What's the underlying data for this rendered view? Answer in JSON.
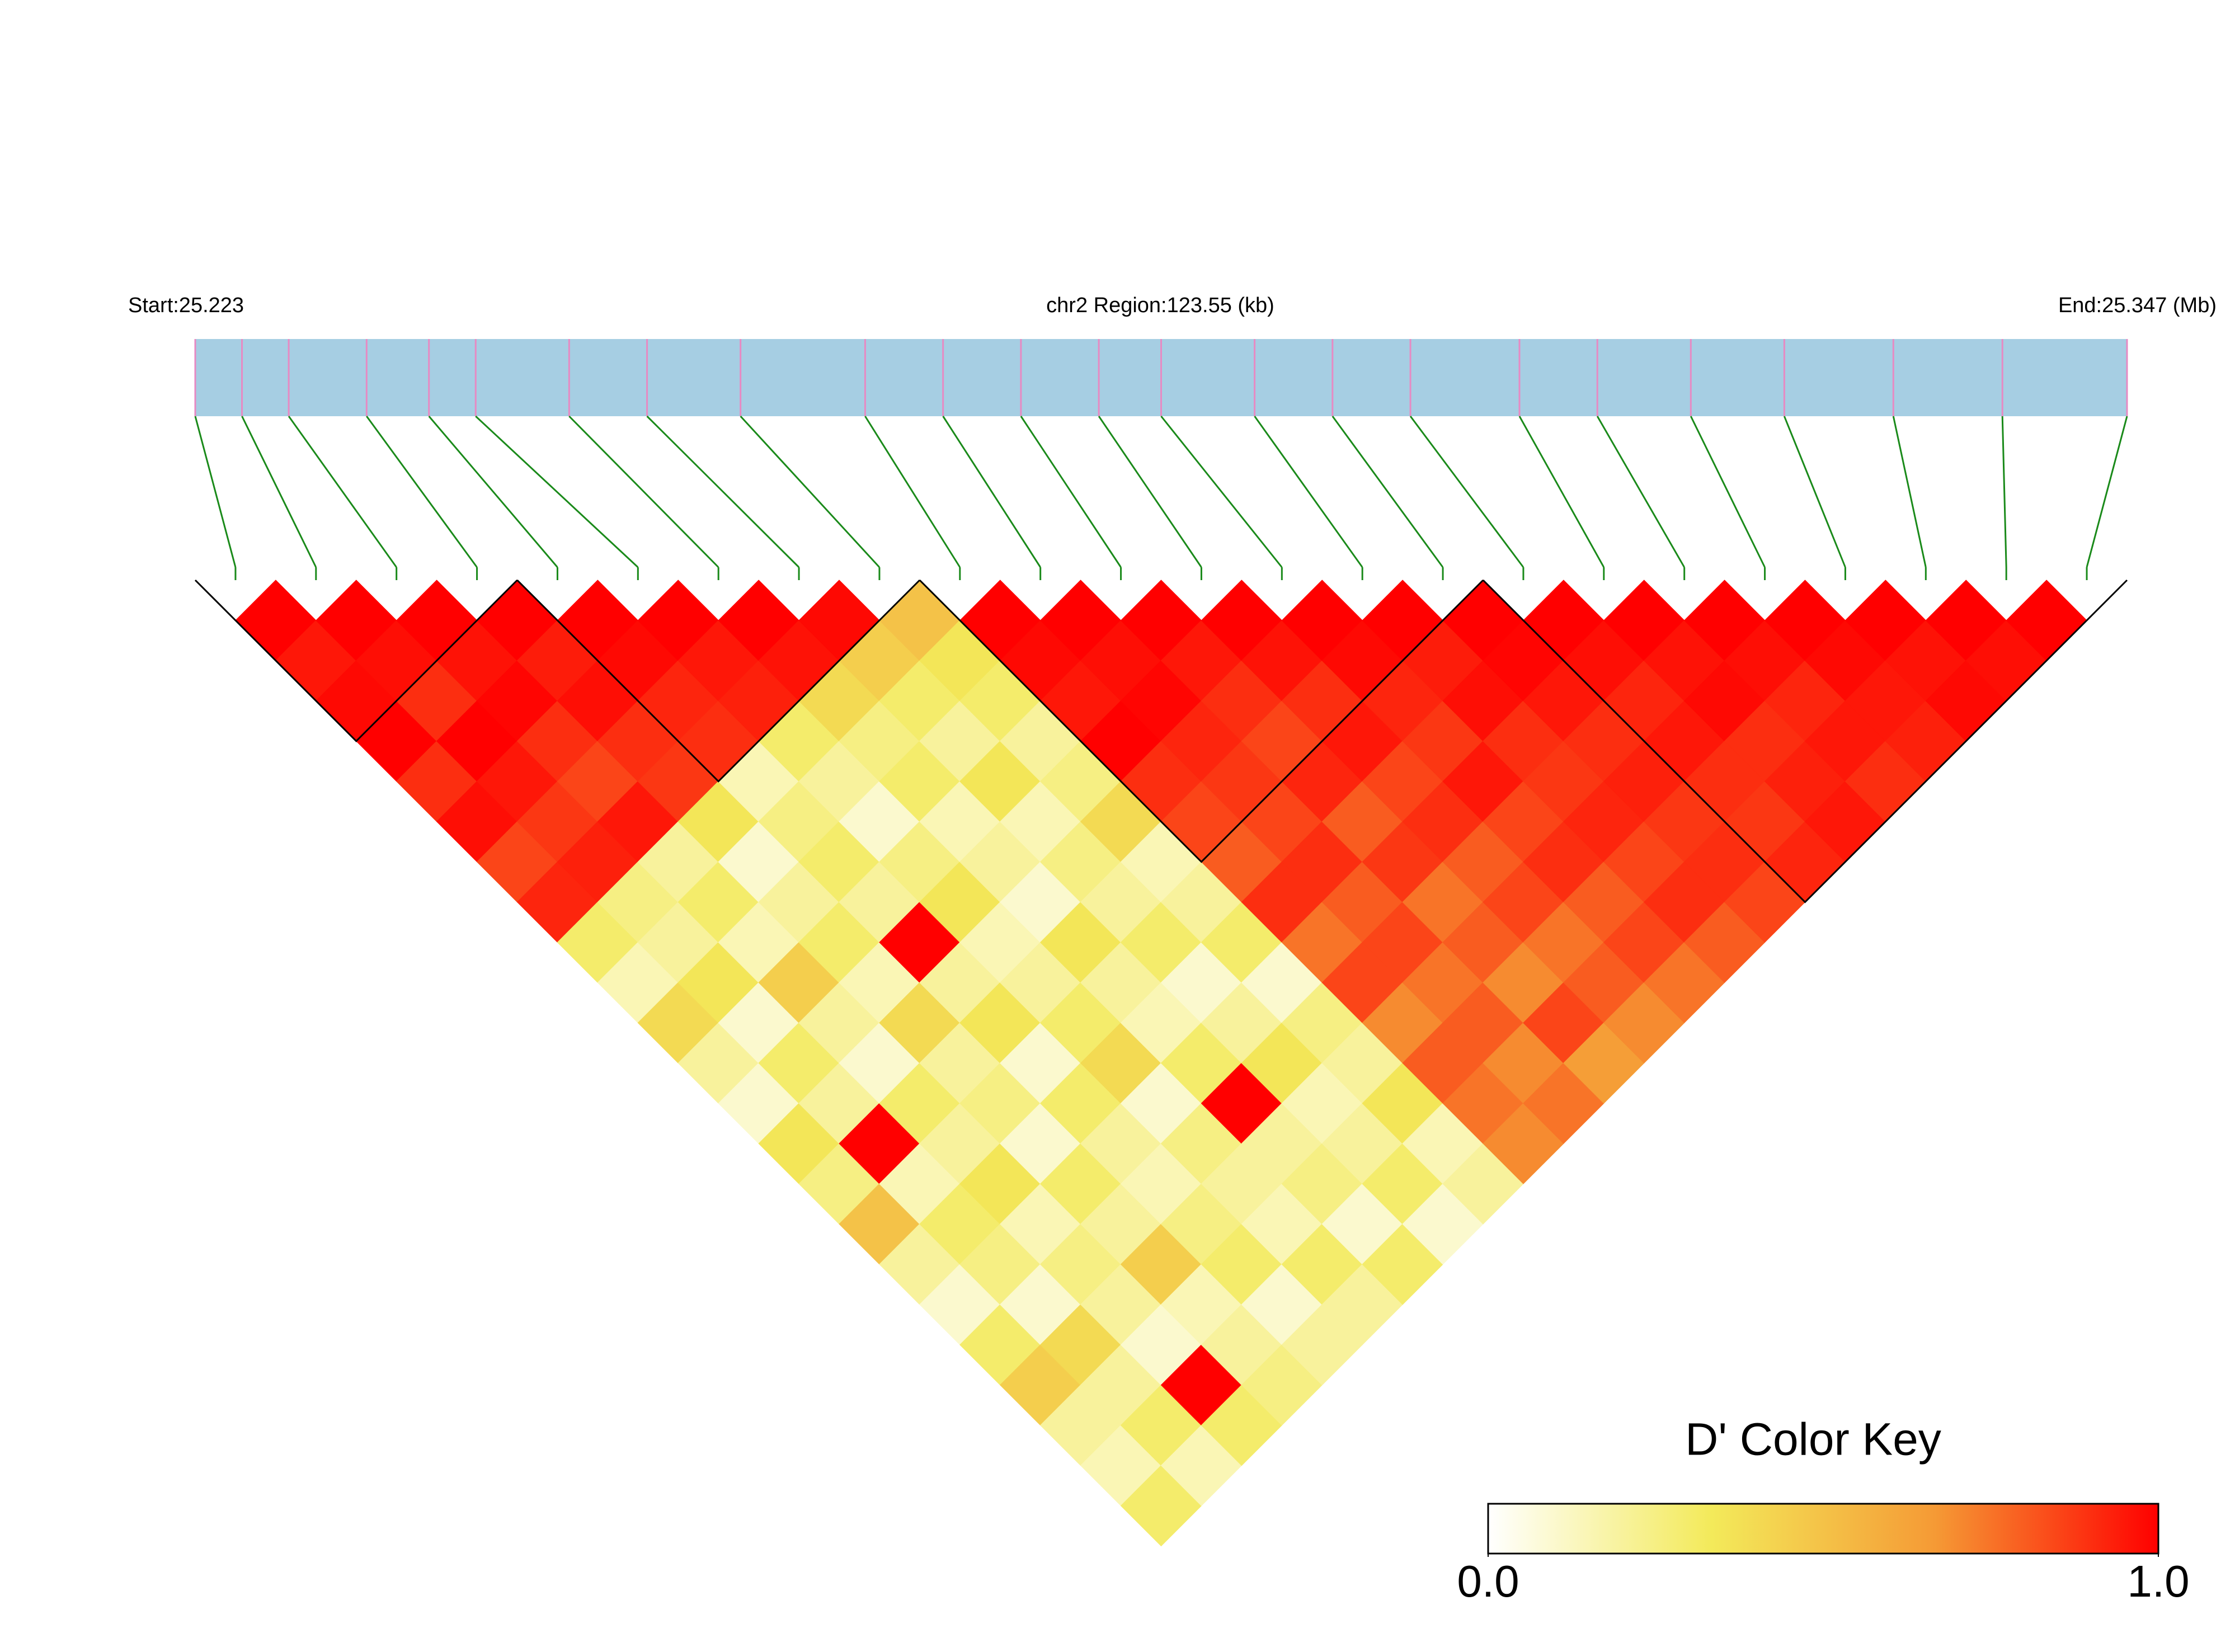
{
  "chart_data": {
    "type": "ld-heatmap",
    "start_label": "Start:25.223",
    "region_label": "chr2 Region:123.55 (kb)",
    "end_label": "End:25.347 (Mb)",
    "key_title": "D' Color Key",
    "xlim": [
      25.223,
      25.347
    ],
    "positions": [
      25.223,
      25.226,
      25.229,
      25.234,
      25.238,
      25.241,
      25.247,
      25.252,
      25.258,
      25.266,
      25.271,
      25.276,
      25.281,
      25.285,
      25.291,
      25.296,
      25.301,
      25.308,
      25.313,
      25.319,
      25.325,
      25.332,
      25.339,
      25.347
    ],
    "dprime": [
      [
        1,
        0.95,
        0.98,
        1,
        0.9,
        0.97,
        0.85,
        0.92,
        0.3,
        0.15,
        0.4,
        0.2,
        0.1,
        0.35,
        0.25,
        0.5,
        0.2,
        0.1,
        0.3,
        0.45,
        0.2,
        0.15,
        0.3
      ],
      [
        1,
        0.97,
        0.9,
        1,
        0.95,
        0.88,
        0.93,
        0.25,
        0.2,
        0.35,
        0.1,
        0.3,
        0.2,
        1,
        0.15,
        0.3,
        0.25,
        0.1,
        0.4,
        0.2,
        0.3,
        0.15
      ],
      [
        1,
        0.96,
        0.99,
        0.9,
        0.85,
        0.95,
        0.2,
        0.3,
        0.15,
        0.45,
        0.2,
        0.1,
        0.3,
        0.2,
        0.35,
        0.15,
        0.25,
        0.2,
        0.1,
        1,
        0.3
      ],
      [
        1,
        0.94,
        0.97,
        0.9,
        0.88,
        0.35,
        0.1,
        0.2,
        0.3,
        0.15,
        0.4,
        0.2,
        0.25,
        0.1,
        0.3,
        0.2,
        0.45,
        0.15,
        0.2,
        0.25
      ],
      [
        1,
        0.98,
        0.92,
        0.9,
        0.15,
        0.25,
        0.3,
        0.2,
        1,
        0.2,
        0.35,
        0.1,
        0.3,
        0.2,
        0.15,
        0.25,
        0.3,
        0.1,
        0.2
      ],
      [
        1,
        0.95,
        0.93,
        0.3,
        0.2,
        0.1,
        0.25,
        0.35,
        0.15,
        0.2,
        0.3,
        0.4,
        0.1,
        0.25,
        0.2,
        0.15,
        0.3,
        0.2
      ],
      [
        1,
        0.96,
        0.4,
        0.25,
        0.3,
        0.15,
        0.2,
        0.1,
        0.35,
        0.2,
        0.15,
        0.3,
        1,
        0.2,
        0.25,
        0.1,
        0.3
      ],
      [
        0.98,
        0.45,
        0.3,
        0.2,
        0.35,
        0.15,
        0.25,
        0.2,
        0.3,
        0.1,
        0.2,
        0.35,
        0.15,
        0.2,
        0.3,
        0.1
      ],
      [
        0.5,
        0.35,
        0.3,
        0.2,
        0.25,
        0.4,
        0.15,
        0.2,
        0.3,
        0.1,
        0.25,
        0.2,
        0.35,
        0.15,
        0.2
      ],
      [
        1,
        0.98,
        0.95,
        1,
        0.9,
        0.85,
        0.8,
        0.9,
        0.75,
        0.85,
        0.7,
        0.8,
        0.75,
        0.7
      ],
      [
        1,
        0.97,
        0.99,
        0.92,
        0.88,
        0.85,
        0.9,
        0.8,
        0.85,
        0.75,
        0.8,
        0.7,
        0.75
      ],
      [
        1,
        0.95,
        0.9,
        0.85,
        0.92,
        0.8,
        0.88,
        0.75,
        0.8,
        0.7,
        0.85,
        0.65
      ],
      [
        1,
        0.96,
        0.9,
        0.95,
        0.85,
        0.9,
        0.8,
        0.85,
        0.75,
        0.8,
        0.7
      ],
      [
        1,
        0.98,
        0.92,
        0.88,
        0.95,
        0.85,
        0.9,
        0.8,
        0.85,
        0.75
      ],
      [
        1,
        0.94,
        0.97,
        0.9,
        0.88,
        0.92,
        0.85,
        0.9,
        0.8
      ],
      [
        1,
        0.99,
        0.95,
        0.9,
        0.93,
        0.88,
        0.9,
        0.85
      ],
      [
        1,
        0.97,
        0.92,
        0.95,
        0.9,
        0.88,
        0.92
      ],
      [
        1,
        0.96,
        0.98,
        0.9,
        0.93,
        0.95
      ],
      [
        1,
        0.97,
        0.92,
        0.95,
        0.9
      ],
      [
        1,
        0.98,
        0.95,
        0.93
      ],
      [
        1,
        0.96,
        0.98
      ],
      [
        1,
        0.97
      ],
      [
        1
      ]
    ],
    "blocks": [
      [
        0,
        3
      ],
      [
        4,
        8
      ],
      [
        9,
        15
      ],
      [
        16,
        23
      ]
    ],
    "colors": [
      "#ffffff",
      "#f3ea5a",
      "#f59a35",
      "#ff0000"
    ],
    "bar_color": "#a6cee3",
    "marker_color": "#e78ac3",
    "link_color": "#1a8a1a",
    "key_ticks": [
      {
        "value": 0,
        "label": "0.0"
      },
      {
        "value": 1,
        "label": "1.0"
      }
    ]
  }
}
